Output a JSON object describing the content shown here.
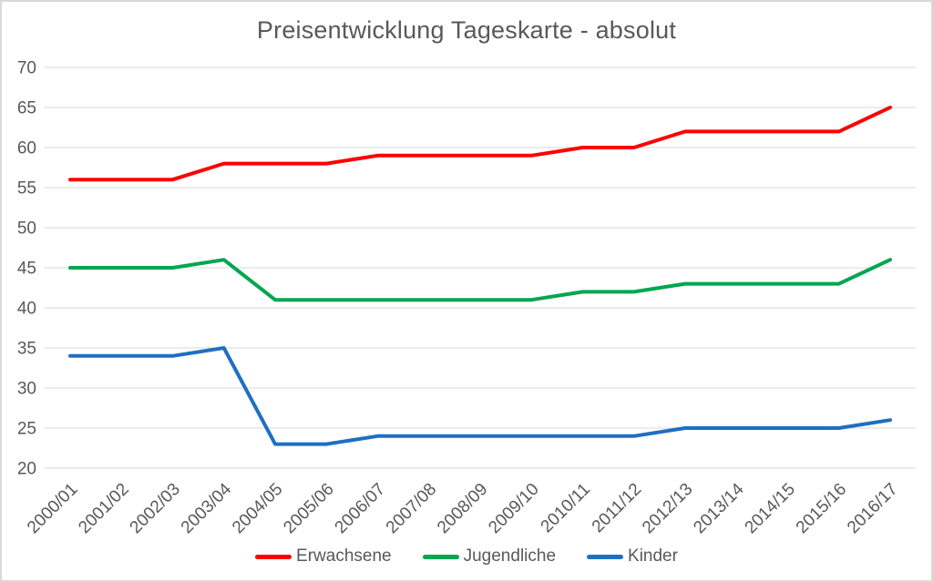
{
  "chart_data": {
    "type": "line",
    "title": "Preisentwicklung Tageskarte - absolut",
    "categories": [
      "2000/01",
      "2001/02",
      "2002/03",
      "2003/04",
      "2004/05",
      "2005/06",
      "2006/07",
      "2007/08",
      "2008/09",
      "2009/10",
      "2010/11",
      "2011/12",
      "2012/13",
      "2013/14",
      "2014/15",
      "2015/16",
      "2016/17"
    ],
    "series": [
      {
        "name": "Erwachsene",
        "color": "#FF0000",
        "values": [
          56,
          56,
          56,
          58,
          58,
          58,
          59,
          59,
          59,
          59,
          60,
          60,
          62,
          62,
          62,
          62,
          65
        ]
      },
      {
        "name": "Jugendliche",
        "color": "#00A650",
        "values": [
          45,
          45,
          45,
          46,
          41,
          41,
          41,
          41,
          41,
          41,
          42,
          42,
          43,
          43,
          43,
          43,
          46
        ]
      },
      {
        "name": "Kinder",
        "color": "#1F6FC1",
        "values": [
          34,
          34,
          34,
          35,
          23,
          23,
          24,
          24,
          24,
          24,
          24,
          24,
          25,
          25,
          25,
          25,
          26
        ]
      }
    ],
    "yticks": [
      70,
      65,
      60,
      55,
      50,
      45,
      40,
      35,
      30,
      25,
      20
    ],
    "ylim": [
      20,
      70
    ],
    "xlabel": "",
    "ylabel": "",
    "grid": true,
    "legend_position": "bottom",
    "colors": {
      "grid": "#D9D9D9",
      "axis_text": "#595959",
      "title_text": "#595959",
      "border": "#D9D9D9",
      "background": "#FFFFFF"
    }
  }
}
